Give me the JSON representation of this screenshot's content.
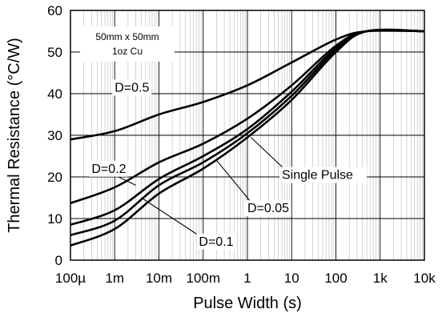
{
  "chart_data": {
    "type": "line",
    "xlabel": "Pulse Width (s)",
    "ylabel": "Thermal Resistance (°C/W)",
    "x_scale": "log",
    "xlim": [
      0.0001,
      10000
    ],
    "ylim": [
      0,
      60
    ],
    "grid": true,
    "x_ticks": [
      {
        "value": 0.0001,
        "label": "100µ"
      },
      {
        "value": 0.001,
        "label": "1m"
      },
      {
        "value": 0.01,
        "label": "10m"
      },
      {
        "value": 0.1,
        "label": "100m"
      },
      {
        "value": 1,
        "label": "1"
      },
      {
        "value": 10,
        "label": "10"
      },
      {
        "value": 100,
        "label": "100"
      },
      {
        "value": 1000,
        "label": "1k"
      },
      {
        "value": 10000,
        "label": "10k"
      }
    ],
    "y_ticks": [
      0,
      10,
      20,
      30,
      40,
      50,
      60
    ],
    "inset_text": [
      "50mm x 50mm",
      "1oz Cu"
    ],
    "series": [
      {
        "name": "D=0.5",
        "points": [
          [
            0.0001,
            29
          ],
          [
            0.001,
            31
          ],
          [
            0.01,
            35
          ],
          [
            0.1,
            38
          ],
          [
            1,
            42
          ],
          [
            10,
            47.5
          ],
          [
            100,
            53
          ],
          [
            500,
            55
          ],
          [
            10000,
            55
          ]
        ]
      },
      {
        "name": "D=0.2",
        "points": [
          [
            0.0001,
            13.7
          ],
          [
            0.001,
            17.5
          ],
          [
            0.01,
            23.5
          ],
          [
            0.1,
            28
          ],
          [
            1,
            34
          ],
          [
            10,
            42
          ],
          [
            100,
            51.5
          ],
          [
            500,
            55
          ],
          [
            10000,
            55
          ]
        ]
      },
      {
        "name": "D=0.1",
        "points": [
          [
            0.0001,
            8.5
          ],
          [
            0.001,
            12
          ],
          [
            0.01,
            19.5
          ],
          [
            0.1,
            25
          ],
          [
            1,
            31.5
          ],
          [
            10,
            40.5
          ],
          [
            100,
            51
          ],
          [
            500,
            55
          ],
          [
            10000,
            55
          ]
        ]
      },
      {
        "name": "D=0.05",
        "points": [
          [
            0.0001,
            6
          ],
          [
            0.001,
            9.5
          ],
          [
            0.01,
            18
          ],
          [
            0.1,
            23.5
          ],
          [
            1,
            30.5
          ],
          [
            10,
            39.5
          ],
          [
            100,
            50.5
          ],
          [
            500,
            55
          ],
          [
            10000,
            55
          ]
        ]
      },
      {
        "name": "Single Pulse",
        "points": [
          [
            0.0001,
            3.5
          ],
          [
            0.001,
            7.5
          ],
          [
            0.01,
            16
          ],
          [
            0.1,
            22
          ],
          [
            1,
            29.5
          ],
          [
            10,
            38.5
          ],
          [
            100,
            50
          ],
          [
            500,
            55
          ],
          [
            10000,
            55
          ]
        ]
      }
    ],
    "annotations": [
      {
        "text": "D=0.5",
        "series": "D=0.5",
        "at": [
          0.001,
          40.5
        ],
        "anchor": "start",
        "line_to": null
      },
      {
        "text": "D=0.2",
        "series": "D=0.2",
        "at": [
          0.0003,
          21
        ],
        "anchor": "start",
        "line_to": [
          0.003,
          18
        ]
      },
      {
        "text": "Single Pulse",
        "series": "Single Pulse",
        "at": [
          6,
          19.5
        ],
        "anchor": "start",
        "line_to": [
          1.2,
          29.5
        ]
      },
      {
        "text": "D=0.05",
        "series": "D=0.05",
        "at": [
          1,
          11.5
        ],
        "anchor": "start",
        "line_to": [
          0.2,
          24
        ]
      },
      {
        "text": "D=0.1",
        "series": "D=0.1",
        "at": [
          0.08,
          3.5
        ],
        "anchor": "start",
        "line_to": [
          0.004,
          15
        ]
      }
    ]
  }
}
